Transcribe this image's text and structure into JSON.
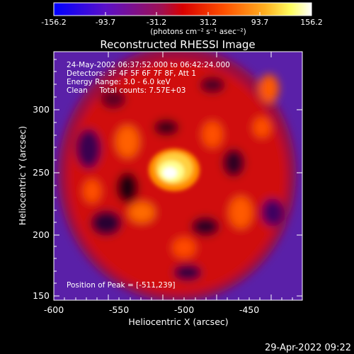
{
  "colorbar": {
    "ticks": [
      "-156.2",
      "-93.7",
      "-31.2",
      "31.2",
      "93.7",
      "156.2"
    ],
    "units": "(photons cm⁻² s⁻¹ asec⁻²)",
    "colors": [
      "#0000ff",
      "#6a00c0",
      "#c00040",
      "#ff0000",
      "#ff8000",
      "#ffff60",
      "#ffffff"
    ]
  },
  "title": "Reconstructed RHESSI Image",
  "info": {
    "time": "24-May-2002 06:37:52.000 to 06:42:24.000",
    "detectors": "Detectors: 3F 4F 5F 6F 7F 8F, Att 1",
    "energy": "Energy Range: 3.0 - 6.0 keV",
    "clean": "Clean     Total counts: 7.57E+03"
  },
  "peak": "Position of Peak = [-511,239]",
  "x_axis": {
    "label": "Heliocentric X (arcsec)",
    "ticks": [
      "-600",
      "-550",
      "-500",
      "-450"
    ]
  },
  "y_axis": {
    "label": "Heliocentric Y (arcsec)",
    "ticks": [
      "150",
      "200",
      "250",
      "300"
    ]
  },
  "timestamp": "29-Apr-2022 09:22"
}
